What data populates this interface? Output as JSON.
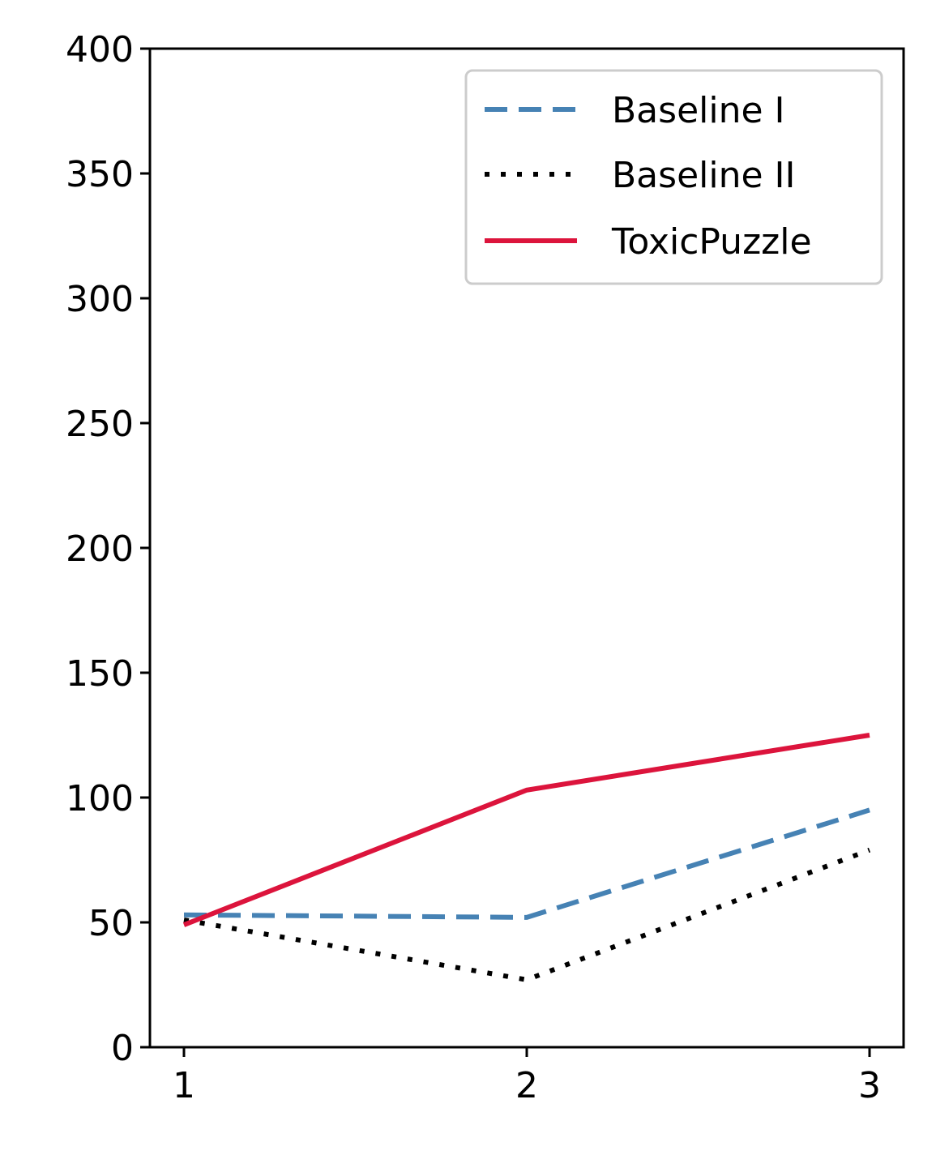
{
  "chart_data": {
    "type": "line",
    "title": "",
    "xlabel": "",
    "ylabel": "",
    "x": [
      1,
      2,
      3
    ],
    "x_ticks": [
      "1",
      "2",
      "3"
    ],
    "y_ticks": [
      "0",
      "50",
      "100",
      "150",
      "200",
      "250",
      "300",
      "350",
      "400"
    ],
    "ylim": [
      0,
      400
    ],
    "grid": false,
    "legend_position": "top-right",
    "series": [
      {
        "name": "Baseline I",
        "values": [
          53,
          52,
          95
        ],
        "color": "#4682B4",
        "style": "dashed"
      },
      {
        "name": "Baseline II",
        "values": [
          51,
          27,
          79
        ],
        "color": "#000000",
        "style": "dotted"
      },
      {
        "name": "ToxicPuzzle",
        "values": [
          49,
          103,
          125
        ],
        "color": "#DC143C",
        "style": "solid"
      }
    ]
  }
}
